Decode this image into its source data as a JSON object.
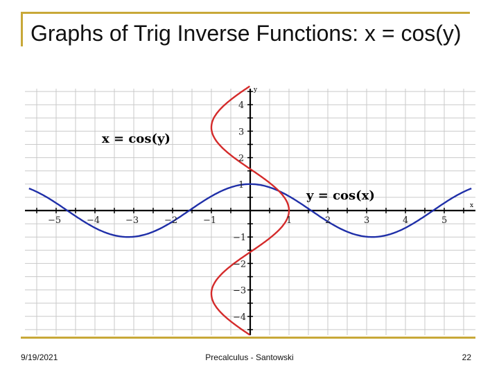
{
  "slide": {
    "title": "Graphs of Trig Inverse Functions: x = cos(y)",
    "footer_date": "9/19/2021",
    "footer_center": "Precalculus - Santowski",
    "page_number": "22",
    "accent_color": "#c8a838"
  },
  "chart_data": {
    "type": "line",
    "title": "",
    "xlabel": "x",
    "ylabel": "y",
    "xlim": [
      -5.7,
      5.7
    ],
    "ylim": [
      -4.7,
      4.7
    ],
    "grid": true,
    "x_ticks": [
      -5,
      -4,
      -3,
      -2,
      -1,
      1,
      2,
      3,
      4,
      5
    ],
    "y_ticks": [
      -4,
      -3,
      -2,
      -1,
      1,
      2,
      3,
      4
    ],
    "series": [
      {
        "name": "y = cos(x)",
        "color": "#1f2fa8",
        "relation": "y = cos(x)",
        "domain": [
          -5.7,
          5.7
        ],
        "points": [
          [
            -5.7,
            0.83
          ],
          [
            -4.71,
            0.0
          ],
          [
            -3.14,
            -1.0
          ],
          [
            -1.57,
            0.0
          ],
          [
            0,
            1.0
          ],
          [
            1.57,
            0.0
          ],
          [
            3.14,
            -1.0
          ],
          [
            4.71,
            0.0
          ],
          [
            5.7,
            0.83
          ]
        ]
      },
      {
        "name": "x = cos(y)",
        "color": "#d42a2a",
        "relation": "x = cos(y)",
        "range": [
          -4.7,
          4.7
        ],
        "points": [
          [
            0.0,
            -4.71
          ],
          [
            -1.0,
            -3.14
          ],
          [
            0.0,
            -1.57
          ],
          [
            1.0,
            0.0
          ],
          [
            0.0,
            1.57
          ],
          [
            -1.0,
            3.14
          ],
          [
            0.0,
            4.71
          ]
        ]
      }
    ],
    "annotations": [
      {
        "text": "x = cos(y)",
        "series": "x = cos(y)"
      },
      {
        "text": "y = cos(x)",
        "series": "y = cos(x)"
      }
    ]
  }
}
